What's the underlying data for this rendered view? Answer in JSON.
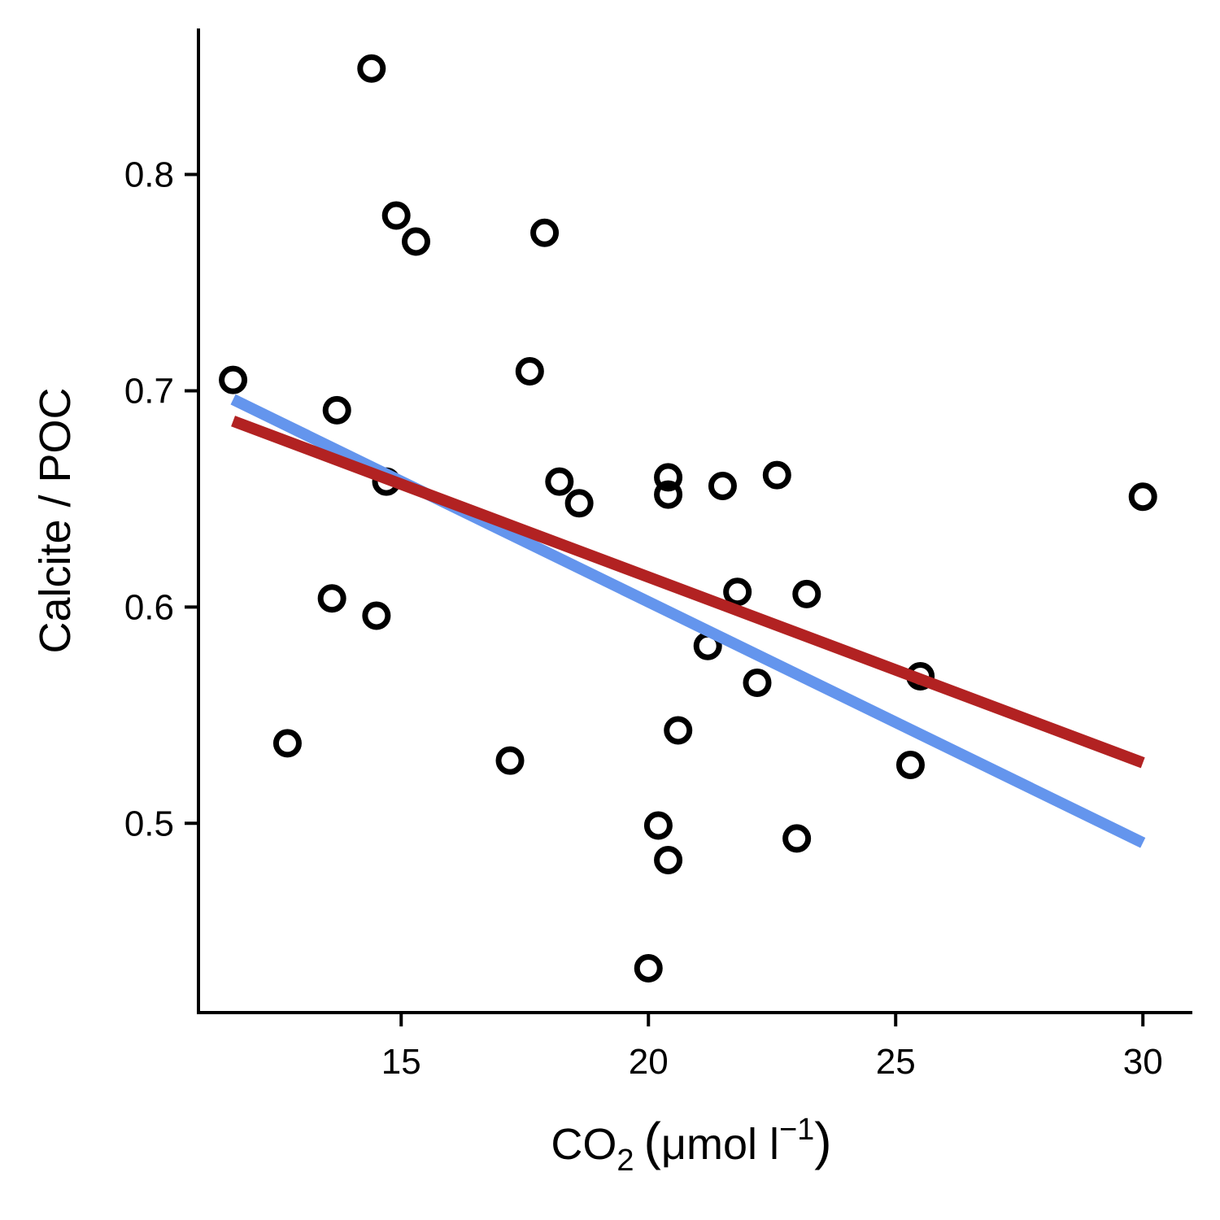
{
  "chart_data": {
    "type": "scatter",
    "title": "",
    "xlabel": {
      "prefix": "CO",
      "sub": "2",
      "open": "(",
      "unit": "μmol l",
      "sup": "−1",
      "close": ")"
    },
    "ylabel": "Calcite / POC",
    "xlim": [
      10.9,
      31
    ],
    "ylim": [
      0.4125,
      0.8675
    ],
    "x_ticks": [
      15,
      20,
      25,
      30
    ],
    "x_tick_labels": [
      "15",
      "20",
      "25",
      "30"
    ],
    "y_ticks": [
      0.5,
      0.6,
      0.7,
      0.8
    ],
    "y_tick_labels": [
      "0.5",
      "0.6",
      "0.7",
      "0.8"
    ],
    "grid": false,
    "legend": "none",
    "points": [
      {
        "x": 11.6,
        "y": 0.705
      },
      {
        "x": 12.7,
        "y": 0.537
      },
      {
        "x": 13.6,
        "y": 0.604
      },
      {
        "x": 13.7,
        "y": 0.691
      },
      {
        "x": 14.4,
        "y": 0.849
      },
      {
        "x": 14.5,
        "y": 0.596
      },
      {
        "x": 14.7,
        "y": 0.658
      },
      {
        "x": 14.9,
        "y": 0.781
      },
      {
        "x": 15.3,
        "y": 0.769
      },
      {
        "x": 17.2,
        "y": 0.529
      },
      {
        "x": 17.6,
        "y": 0.709
      },
      {
        "x": 17.9,
        "y": 0.773
      },
      {
        "x": 18.2,
        "y": 0.658
      },
      {
        "x": 18.6,
        "y": 0.648
      },
      {
        "x": 20.0,
        "y": 0.433
      },
      {
        "x": 20.2,
        "y": 0.499
      },
      {
        "x": 20.4,
        "y": 0.66
      },
      {
        "x": 20.4,
        "y": 0.652
      },
      {
        "x": 20.4,
        "y": 0.483
      },
      {
        "x": 20.6,
        "y": 0.543
      },
      {
        "x": 21.2,
        "y": 0.582
      },
      {
        "x": 21.5,
        "y": 0.656
      },
      {
        "x": 21.8,
        "y": 0.607
      },
      {
        "x": 22.2,
        "y": 0.565
      },
      {
        "x": 22.6,
        "y": 0.661
      },
      {
        "x": 23.0,
        "y": 0.493
      },
      {
        "x": 23.2,
        "y": 0.606
      },
      {
        "x": 25.3,
        "y": 0.527
      },
      {
        "x": 25.5,
        "y": 0.568
      },
      {
        "x": 30.0,
        "y": 0.651
      }
    ],
    "lines": [
      {
        "x": [
          11.6,
          30.0
        ],
        "y": [
          0.696,
          0.491
        ],
        "color": "#6495ED"
      },
      {
        "x": [
          11.6,
          30.0
        ],
        "y": [
          0.686,
          0.528
        ],
        "color": "#B22222"
      }
    ]
  }
}
